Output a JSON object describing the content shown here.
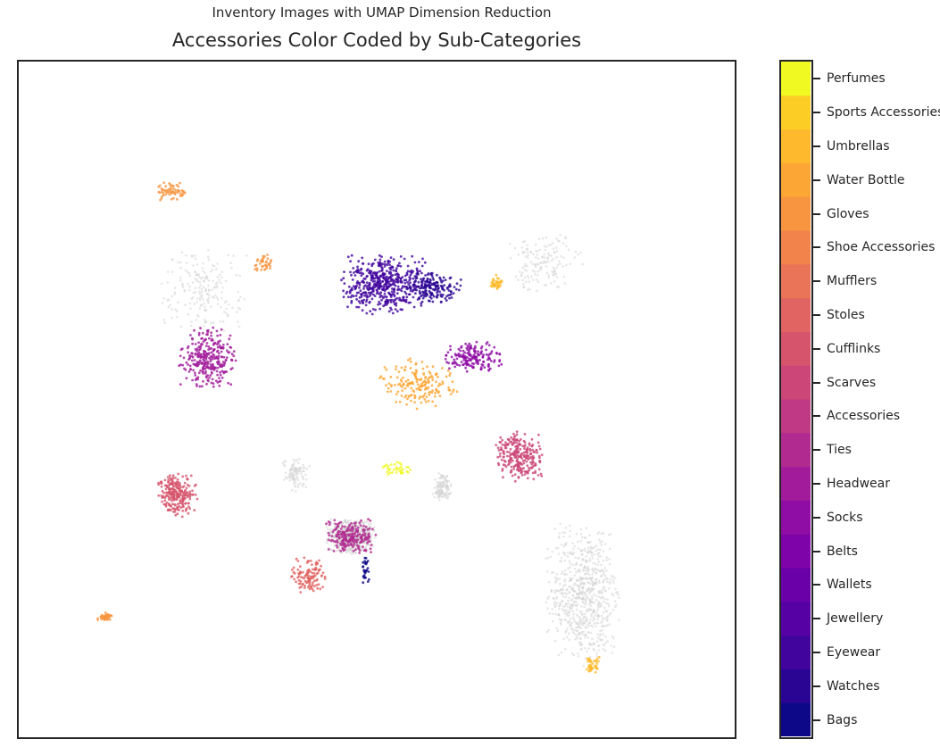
{
  "chart_data": {
    "type": "scatter",
    "suptitle": "Inventory Images with UMAP Dimension Reduction",
    "title": "Accessories Color Coded by Sub-Categories",
    "xlabel": "",
    "ylabel": "",
    "axes_ticks": "none",
    "background_points_color": "#d3d3d3",
    "colorbar": {
      "position": "right",
      "categories": [
        "Bags",
        "Watches",
        "Eyewear",
        "Jewellery",
        "Wallets",
        "Belts",
        "Socks",
        "Headwear",
        "Ties",
        "Accessories",
        "Scarves",
        "Cufflinks",
        "Stoles",
        "Mufflers",
        "Shoe Accessories",
        "Gloves",
        "Water Bottle",
        "Umbrellas",
        "Sports Accessories",
        "Perfumes"
      ],
      "colors": [
        "#0d0887",
        "#2a0593",
        "#41049d",
        "#5601a4",
        "#6a00a8",
        "#7e03a8",
        "#8f0da4",
        "#a11b9b",
        "#b12a90",
        "#bf3984",
        "#cc4778",
        "#d6556d",
        "#e16462",
        "#ea7457",
        "#f2844b",
        "#f89540",
        "#fca636",
        "#feba2c",
        "#fcce25",
        "#f0f921"
      ]
    },
    "clusters": [
      {
        "category": "Background",
        "x": [
          3.5,
          4.5
        ],
        "y": [
          -8.0,
          -7.3
        ],
        "n": 650
      },
      {
        "category": "Background",
        "x": [
          7.8,
          9.3
        ],
        "y": [
          -10.2,
          -7.3
        ],
        "n": 700
      },
      {
        "category": "Background",
        "x": [
          0.2,
          2.0
        ],
        "y": [
          -3.8,
          -2.0
        ],
        "n": 200
      },
      {
        "category": "Background",
        "x": [
          7.0,
          8.6
        ],
        "y": [
          -3.0,
          -1.7
        ],
        "n": 150
      },
      {
        "category": "Background",
        "x": [
          5.6,
          6.0
        ],
        "y": [
          -7.0,
          -6.4
        ],
        "n": 120
      },
      {
        "category": "Background",
        "x": [
          2.6,
          3.2
        ],
        "y": [
          -6.8,
          -6.1
        ],
        "n": 100
      },
      {
        "category": "Ties",
        "x": [
          3.5,
          4.5
        ],
        "y": [
          -8.0,
          -7.3
        ],
        "n": 220
      },
      {
        "category": "Perfumes",
        "x": [
          4.6,
          5.2
        ],
        "y": [
          -6.5,
          -6.2
        ],
        "n": 35
      },
      {
        "category": "Scarves",
        "x": [
          6.8,
          7.8
        ],
        "y": [
          -6.6,
          -5.6
        ],
        "n": 260
      },
      {
        "category": "Stoles",
        "x": [
          2.8,
          3.6
        ],
        "y": [
          -8.8,
          -8.0
        ],
        "n": 120
      },
      {
        "category": "Cufflinks",
        "x": [
          0.2,
          1.0
        ],
        "y": [
          -7.3,
          -6.4
        ],
        "n": 240
      },
      {
        "category": "Headwear",
        "x": [
          0.6,
          1.8
        ],
        "y": [
          -4.8,
          -3.6
        ],
        "n": 300
      },
      {
        "category": "Eyewear",
        "x": [
          3.8,
          5.5
        ],
        "y": [
          -3.4,
          -2.2
        ],
        "n": 480
      },
      {
        "category": "Watches",
        "x": [
          5.0,
          6.2
        ],
        "y": [
          -3.2,
          -2.5
        ],
        "n": 180
      },
      {
        "category": "Socks",
        "x": [
          5.8,
          7.0
        ],
        "y": [
          -4.5,
          -3.9
        ],
        "n": 170
      },
      {
        "category": "Water Bottle",
        "x": [
          4.5,
          6.2
        ],
        "y": [
          -5.2,
          -4.2
        ],
        "n": 180
      },
      {
        "category": "Gloves",
        "x": [
          0.2,
          0.8
        ],
        "y": [
          -1.2,
          -0.8
        ],
        "n": 60
      },
      {
        "category": "Gloves",
        "x": [
          -1.0,
          -0.6
        ],
        "y": [
          -9.3,
          -9.1
        ],
        "n": 40
      },
      {
        "category": "Gloves",
        "x": [
          2.1,
          2.5
        ],
        "y": [
          -2.6,
          -2.2
        ],
        "n": 40
      },
      {
        "category": "Umbrellas",
        "x": [
          8.6,
          8.9
        ],
        "y": [
          -10.3,
          -9.9
        ],
        "n": 40
      },
      {
        "category": "Umbrellas",
        "x": [
          6.7,
          7.0
        ],
        "y": [
          -2.9,
          -2.6
        ],
        "n": 35
      },
      {
        "category": "Bags",
        "x": [
          4.2,
          4.4
        ],
        "y": [
          -8.6,
          -8.0
        ],
        "n": 30
      }
    ]
  }
}
